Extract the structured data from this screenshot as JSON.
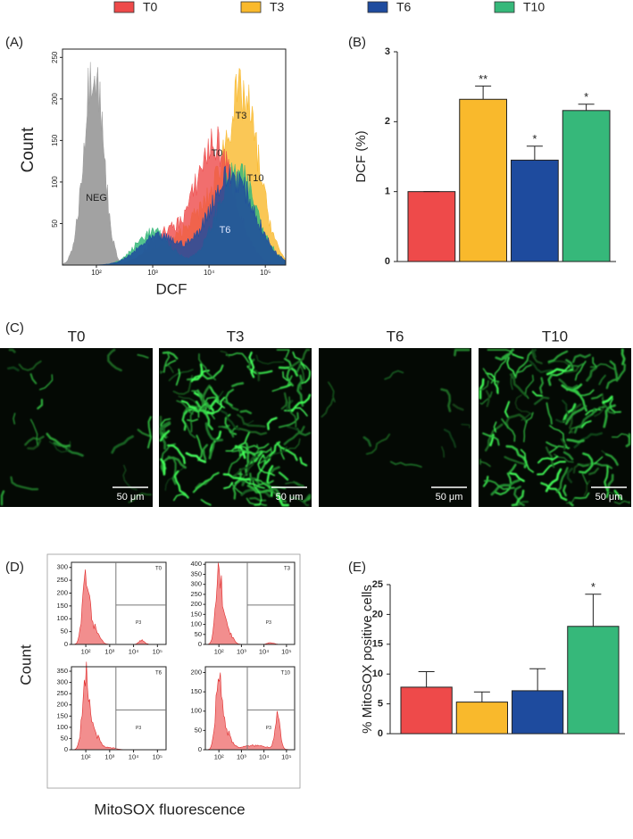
{
  "legend": [
    {
      "name": "T0",
      "color": "#ee4a4a"
    },
    {
      "name": "T3",
      "color": "#f9b92c"
    },
    {
      "name": "T6",
      "color": "#1e4b9e"
    },
    {
      "name": "T10",
      "color": "#36b87a"
    }
  ],
  "chart_data": [
    {
      "type": "flow-histogram",
      "panel_label": "(A)",
      "y_label": "Count",
      "x_label": "DCF",
      "log_x": true,
      "xlim": [
        25,
        230000
      ],
      "ylim": [
        0,
        260
      ],
      "xticks": [
        {
          "value": 100,
          "label": "10²"
        },
        {
          "value": 1000,
          "label": "10³"
        },
        {
          "value": 10000,
          "label": "10⁴"
        },
        {
          "value": 100000,
          "label": "10⁵"
        }
      ],
      "yticks": [
        50,
        100,
        150,
        200,
        250
      ],
      "curve_labels": [
        "NEG",
        "T0",
        "T3",
        "T10",
        "T6"
      ]
    },
    {
      "type": "bar",
      "panel_label": "(B)",
      "y_label": "DCF (%)",
      "values": [
        1,
        2.32,
        1.45,
        2.16
      ],
      "errors": [
        0,
        0.19,
        0.2,
        0.09
      ],
      "annotations": [
        null,
        "**",
        "*",
        "*"
      ],
      "ylim": [
        0,
        3
      ],
      "yticks": [
        0,
        1,
        2,
        3
      ]
    },
    {
      "type": "flow-histogram-grid",
      "panel_label": "(D)",
      "y_label": "Count",
      "x_label": "MitoSOX fluorescence",
      "log_x": true,
      "xlim": [
        25,
        230000
      ],
      "xticks": [
        {
          "value": 100,
          "label": "10²"
        },
        {
          "value": 1000,
          "label": "10³"
        },
        {
          "value": 10000,
          "label": "10⁴"
        },
        {
          "value": 100000,
          "label": "10⁵"
        }
      ],
      "panels": [
        {
          "name": "T0",
          "gate_label": "P3",
          "ylim": [
            0,
            320
          ],
          "yticks": [
            0,
            50,
            100,
            150,
            200,
            250,
            300
          ]
        },
        {
          "name": "T3",
          "gate_label": "P3",
          "ylim": [
            0,
            410
          ],
          "yticks": [
            0,
            50,
            100,
            150,
            200,
            250,
            300,
            350,
            400
          ]
        },
        {
          "name": "T6",
          "gate_label": "P3",
          "ylim": [
            0,
            370
          ],
          "yticks": [
            0,
            50,
            100,
            150,
            200,
            250,
            300,
            350
          ]
        },
        {
          "name": "T10",
          "gate_label": "P3",
          "ylim": [
            0,
            215
          ],
          "yticks": [
            0,
            50,
            100,
            150,
            200
          ]
        }
      ]
    },
    {
      "type": "bar",
      "panel_label": "(E)",
      "y_label": "% MitoSOX positive cells",
      "values": [
        7.8,
        5.3,
        7.2,
        18
      ],
      "errors": [
        2.6,
        1.7,
        3.7,
        5.4
      ],
      "annotations": [
        null,
        null,
        null,
        "*"
      ],
      "ylim": [
        0,
        25
      ],
      "yticks": [
        0,
        5,
        10,
        15,
        20,
        25
      ]
    }
  ],
  "images": {
    "panel_label": "(C)",
    "panels": [
      {
        "title": "T0",
        "scale_bar": "50 μm"
      },
      {
        "title": "T3",
        "scale_bar": "50 μm"
      },
      {
        "title": "T6",
        "scale_bar": "50 μm"
      },
      {
        "title": "T10",
        "scale_bar": "50 μm"
      }
    ]
  }
}
